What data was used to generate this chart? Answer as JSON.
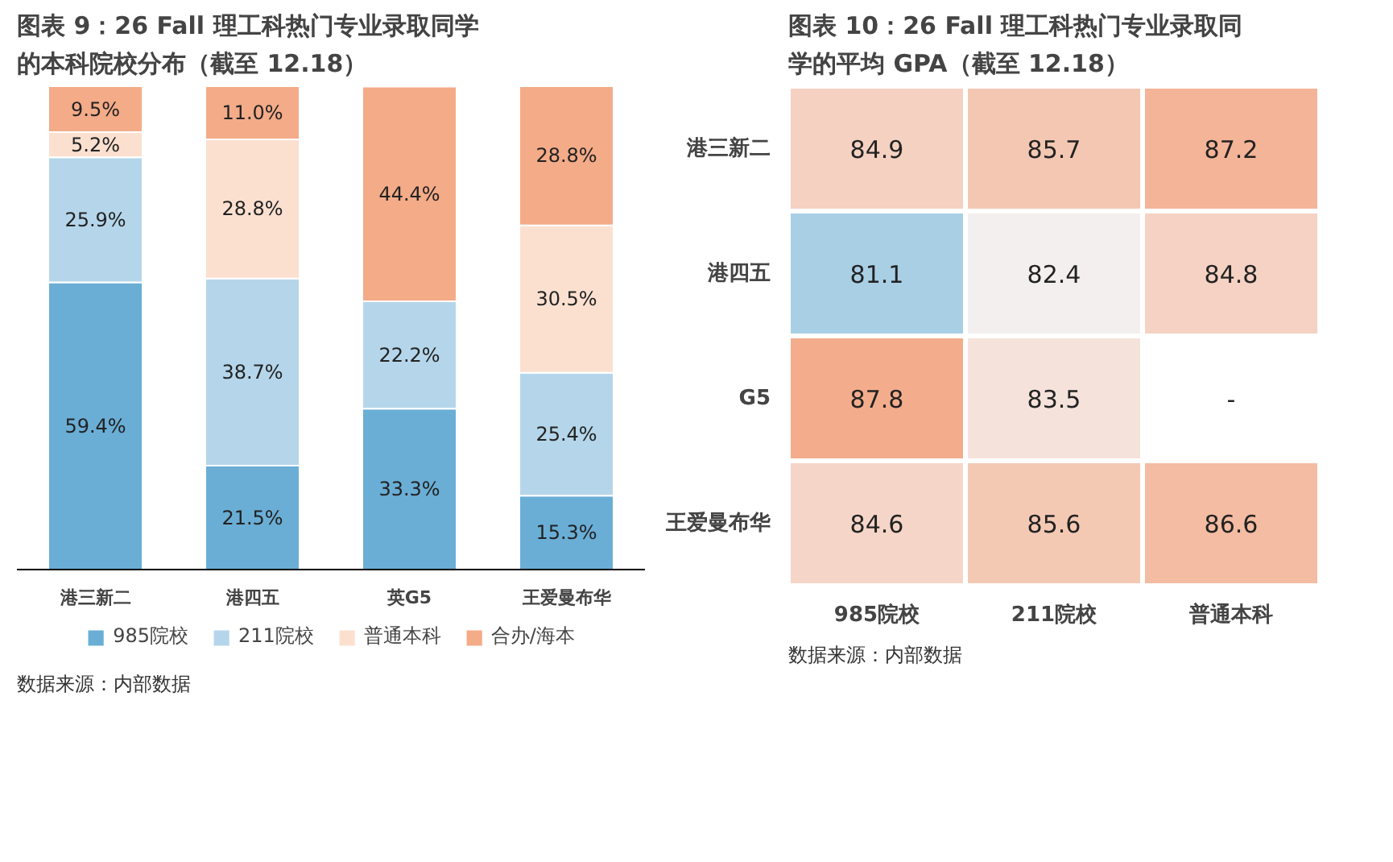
{
  "chart_data": [
    {
      "type": "bar",
      "stacked": true,
      "title": "图表 9：26 Fall 理工科热门专业录取同学的本科院校分布（截至 12.18）",
      "categories": [
        "港三新二",
        "港四五",
        "英G5",
        "王爱曼布华"
      ],
      "series": [
        {
          "name": "985院校",
          "color": "#6aaed6",
          "values": [
            59.4,
            21.5,
            33.3,
            15.3
          ],
          "value_labels": [
            "59.4%",
            "21.5%",
            "33.3%",
            "15.3%"
          ]
        },
        {
          "name": "211院校",
          "color": "#b5d6ea",
          "values": [
            25.9,
            38.7,
            22.2,
            25.4
          ],
          "value_labels": [
            "25.9%",
            "38.7%",
            "22.2%",
            "25.4%"
          ]
        },
        {
          "name": "普通本科",
          "color": "#fbe0d0",
          "values": [
            5.2,
            28.8,
            null,
            30.5
          ],
          "value_labels": [
            "5.2%",
            "28.8%",
            null,
            "30.5%"
          ]
        },
        {
          "name": "合办/海本",
          "color": "#f4ab88",
          "values": [
            9.5,
            11.0,
            44.4,
            28.8
          ],
          "value_labels": [
            "9.5%",
            "11.0%",
            "44.4%",
            "28.8%"
          ]
        }
      ],
      "legend": "bottom",
      "grid": false,
      "annotations": [
        "数据来源：内部数据"
      ]
    },
    {
      "type": "heatmap",
      "title": "图表 10：26 Fall 理工科热门专业录取同学的平均 GPA（截至 12.18）",
      "categories": [
        "985院校",
        "211院校",
        "普通本科"
      ],
      "y_categories": [
        "港三新二",
        "港四五",
        "G5",
        "王爱曼布华"
      ],
      "cells": [
        [
          84.9,
          85.7,
          87.2
        ],
        [
          81.1,
          82.4,
          84.8
        ],
        [
          87.8,
          83.5,
          null
        ],
        [
          84.6,
          85.6,
          86.6
        ]
      ],
      "cell_labels": [
        [
          "84.9",
          "85.7",
          "87.2"
        ],
        [
          "81.1",
          "82.4",
          "84.8"
        ],
        [
          "87.8",
          "83.5",
          "-"
        ],
        [
          "84.6",
          "85.6",
          "86.6"
        ]
      ],
      "annotations": [
        "数据来源：内部数据"
      ]
    }
  ]
}
